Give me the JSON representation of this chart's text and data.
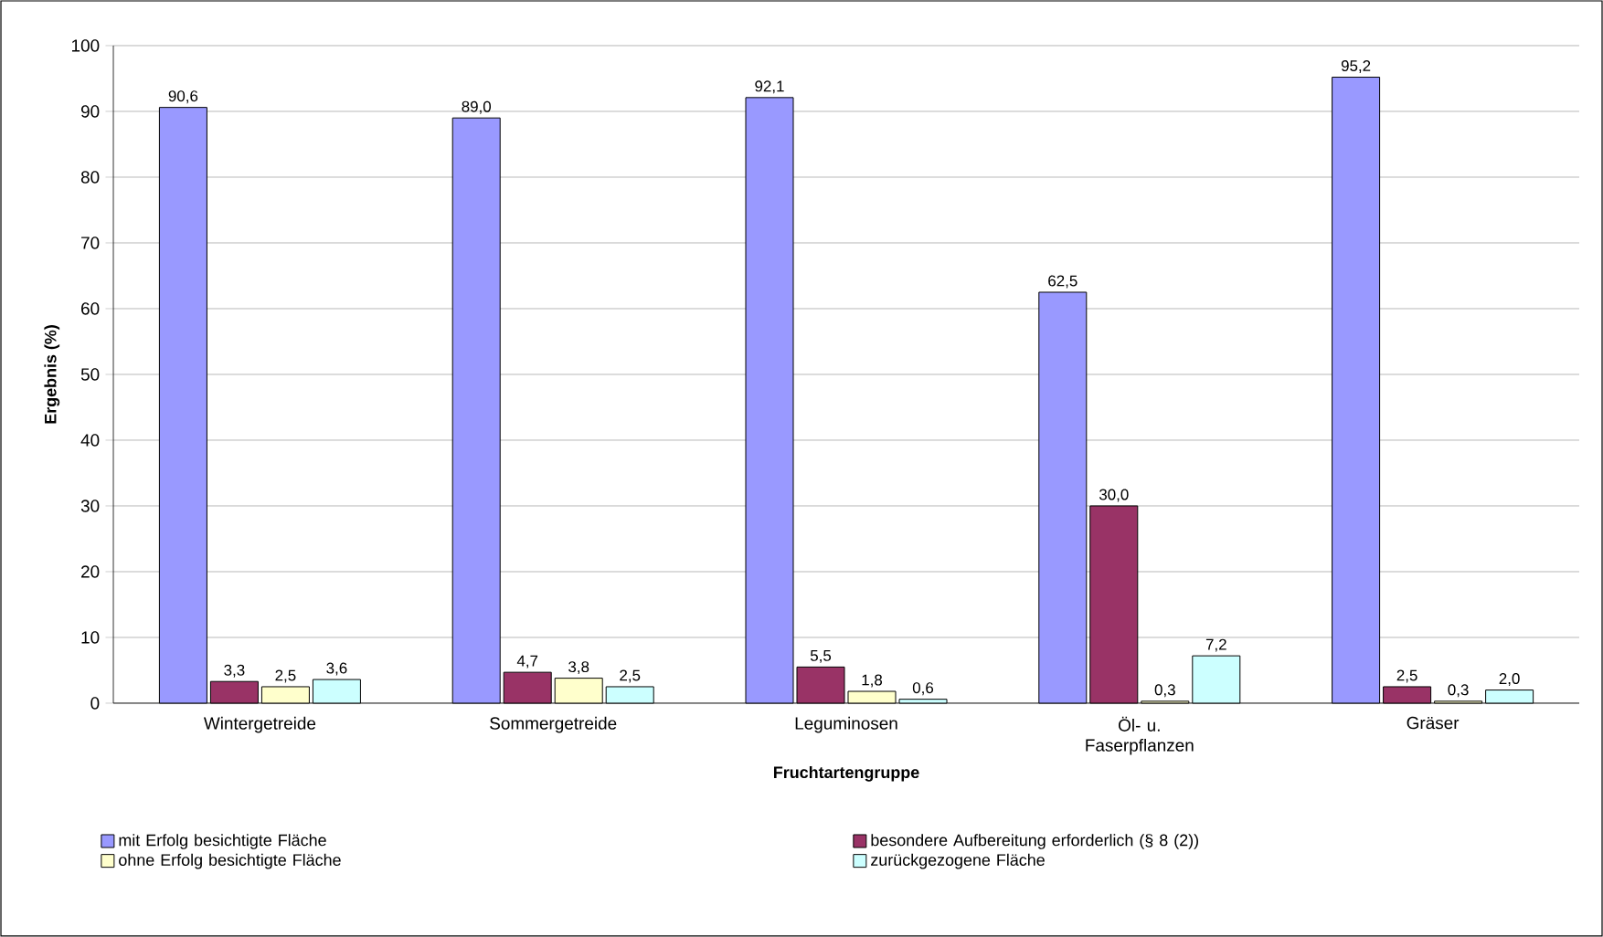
{
  "chart_data": {
    "type": "bar",
    "xlabel": "Fruchtartengruppe",
    "ylabel": "Ergebnis (%)",
    "categories": [
      "Wintergetreide",
      "Sommergetreide",
      "Leguminosen",
      "Öl- u. Faserpflanzen",
      "Gräser"
    ],
    "series": [
      {
        "name": "mit Erfolg besichtigte  Fläche",
        "color": "#9999ff",
        "values": [
          90.6,
          89.0,
          92.1,
          62.5,
          95.2
        ],
        "value_labels": [
          "90,6",
          "89,0",
          "92,1",
          "62,5",
          "95,2"
        ]
      },
      {
        "name": "besondere Aufbereitung erforderlich (§ 8 (2))",
        "color": "#993366",
        "values": [
          3.3,
          4.7,
          5.5,
          30.0,
          2.5
        ],
        "value_labels": [
          "3,3",
          "4,7",
          "5,5",
          "30,0",
          "2,5"
        ]
      },
      {
        "name": "ohne Erfolg besichtigte Fläche",
        "color": "#ffffcc",
        "values": [
          2.5,
          3.8,
          1.8,
          0.3,
          0.3
        ],
        "value_labels": [
          "2,5",
          "3,8",
          "1,8",
          "0,3",
          "0,3"
        ]
      },
      {
        "name": "zurückgezogene  Fläche",
        "color": "#ccffff",
        "values": [
          3.6,
          2.5,
          0.6,
          7.2,
          2.0
        ],
        "value_labels": [
          "3,6",
          "2,5",
          "0,6",
          "7,2",
          "2,0"
        ]
      }
    ],
    "ylim": [
      0,
      100
    ],
    "yticks": [
      0,
      10,
      20,
      30,
      40,
      50,
      60,
      70,
      80,
      90,
      100
    ],
    "grid": "y",
    "legend": "bottom"
  }
}
